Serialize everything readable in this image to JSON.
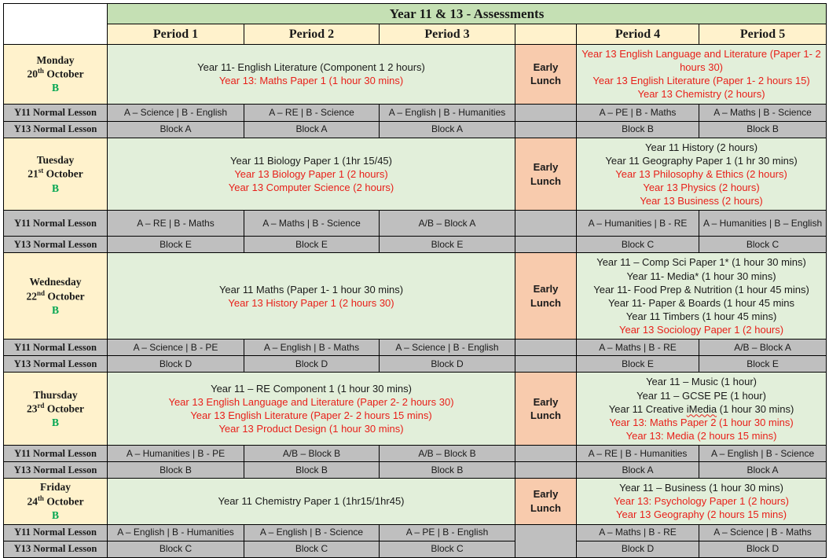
{
  "title": "Year 11 & 13 - Assessments",
  "period_headers": [
    "Period 1",
    "Period 2",
    "Period 3",
    "Period 4",
    "Period 5"
  ],
  "row_labels": {
    "y11": "Y11 Normal Lesson",
    "y13": "Y13 Normal Lesson"
  },
  "lunch": {
    "line1": "Early",
    "line2": "Lunch"
  },
  "colors": {
    "title_bar": "#c5e0b4",
    "header_cream": "#fff2cc",
    "assessment_green": "#e2efda",
    "early_lunch_salmon": "#f8cbad",
    "lesson_gray": "#bfbfbf",
    "exam_red_text": "#e8201a",
    "week_b_green": "#00a651"
  },
  "days": [
    {
      "name": "Monday",
      "date_num": "20",
      "date_suffix": "th",
      "date_month": "October",
      "week": "B",
      "exams_left": [
        {
          "t": "Year 11- English Literature (Component 1 2 hours)",
          "red": false
        },
        {
          "t": "Year 13: Maths Paper 1 (1 hour 30 mins)",
          "red": true
        }
      ],
      "exams_right": [
        {
          "t": "Year 13 English Language and Literature (Paper 1- 2 hours 30)",
          "red": true
        },
        {
          "t": "Year 13 English Literature (Paper 1- 2 hours 15)",
          "red": true
        },
        {
          "t": "Year 13 Chemistry (2 hours)",
          "red": true
        }
      ],
      "y11": [
        "A – Science | B - English",
        "A – RE | B - Science",
        "A – English | B - Humanities",
        "A – PE | B - Maths",
        "A – Maths | B - Science"
      ],
      "y13": [
        "Block A",
        "Block A",
        "Block A",
        "Block B",
        "Block B"
      ]
    },
    {
      "name": "Tuesday",
      "date_num": "21",
      "date_suffix": "st",
      "date_month": "October",
      "week": "B",
      "exams_left": [
        {
          "t": "Year 11 Biology Paper 1 (1hr 15/45)",
          "red": false
        },
        {
          "t": "Year 13 Biology Paper 1 (2 hours)",
          "red": true
        },
        {
          "t": "Year 13 Computer Science (2 hours)",
          "red": true
        }
      ],
      "exams_right": [
        {
          "t": "Year 11 History (2 hours)",
          "red": false
        },
        {
          "t": "Year 11 Geography Paper 1 (1 hr 30 mins)",
          "red": false
        },
        {
          "t": "Year 13 Philosophy & Ethics (2 hours)",
          "red": true
        },
        {
          "t": "Year 13 Physics (2 hours)",
          "red": true
        },
        {
          "t": "Year 13 Business (2 hours)",
          "red": true
        }
      ],
      "y11": [
        "A – RE | B - Maths",
        "A – Maths | B - Science",
        "A/B – Block A",
        "A – Humanities | B - RE",
        "A – Humanities | B – English"
      ],
      "y13": [
        "Block E",
        "Block E",
        "Block E",
        "Block C",
        "Block C"
      ]
    },
    {
      "name": "Wednesday",
      "date_num": "22",
      "date_suffix": "nd",
      "date_month": "October",
      "week": "B",
      "exams_left": [
        {
          "t": "Year 11 Maths (Paper 1- 1 hour 30 mins)",
          "red": false
        },
        {
          "t": "Year 13 History Paper 1 (2 hours 30)",
          "red": true
        }
      ],
      "exams_right": [
        {
          "t": "Year 11 – Comp Sci Paper 1* (1 hour 30 mins)",
          "red": false
        },
        {
          "t": "Year 11- Media* (1 hour 30 mins)",
          "red": false
        },
        {
          "t": "Year 11- Food Prep & Nutrition (1 hour 45 mins)",
          "red": false
        },
        {
          "t": "Year 11- Paper & Boards (1 hour 45 mins",
          "red": false
        },
        {
          "t": "Year 11 Timbers (1 hour 45 mins)",
          "red": false
        },
        {
          "t": "Year 13 Sociology Paper 1 (2 hours)",
          "red": true
        }
      ],
      "y11": [
        "A – Science | B - PE",
        "A – English | B - Maths",
        "A – Science | B - English",
        "A – Maths | B - RE",
        "A/B – Block A"
      ],
      "y13": [
        "Block D",
        "Block D",
        "Block D",
        "Block E",
        "Block E"
      ]
    },
    {
      "name": "Thursday",
      "date_num": "23",
      "date_suffix": "rd",
      "date_month": "October",
      "week": "B",
      "exams_left": [
        {
          "t": "Year 11 – RE Component 1 (1 hour 30 mins)",
          "red": false
        },
        {
          "t": "Year 13 English Language and Literature (Paper 2- 2 hours 30)",
          "red": true
        },
        {
          "t": "Year 13 English Literature (Paper 2- 2 hours 15 mins)",
          "red": true
        },
        {
          "t": "Year 13 Product Design (1 hour 30 mins)",
          "red": true
        }
      ],
      "exams_right": [
        {
          "t": "Year 11 – Music (1 hour)",
          "red": false
        },
        {
          "t": "Year 11 – GCSE PE (1 hour)",
          "red": false
        },
        {
          "parts": [
            {
              "t": "Year 11 Creative ",
              "wavy": false
            },
            {
              "t": "iMedia",
              "wavy": true
            },
            {
              "t": " (1 hour 30 mins)",
              "wavy": false
            }
          ],
          "red": false
        },
        {
          "t": "Year 13: Maths Paper 2 (1 hour 30 mins)",
          "red": true
        },
        {
          "t": "Year 13: Media (2 hours 15 mins)",
          "red": true
        }
      ],
      "y11": [
        "A – Humanities | B - PE",
        "A/B – Block B",
        "A/B – Block B",
        "A – RE | B - Humanities",
        "A – English | B - Science"
      ],
      "y13": [
        "Block B",
        "Block B",
        "Block B",
        "Block A",
        "Block A"
      ]
    },
    {
      "name": "Friday",
      "date_num": "24",
      "date_suffix": "th",
      "date_month": "October",
      "week": "B",
      "exams_left": [
        {
          "t": "Year 11 Chemistry Paper 1 (1hr15/1hr45)",
          "red": false
        }
      ],
      "exams_right": [
        {
          "t": "Year 11 – Business (1 hour 30 mins)",
          "red": false
        },
        {
          "t": "Year 13: Psychology Paper 1 (2 hours)",
          "red": true
        },
        {
          "t": "Year 13 Geography (2 hours 15 mins)",
          "red": true
        }
      ],
      "y11": [
        "A – English | B - Humanities",
        "A – English | B - Science",
        "A – PE | B - English",
        "A – Maths | B - RE",
        "A – Science | B - Maths"
      ],
      "y13": [
        "Block C",
        "Block C",
        "Block C",
        "Block D",
        "Block D"
      ]
    }
  ]
}
